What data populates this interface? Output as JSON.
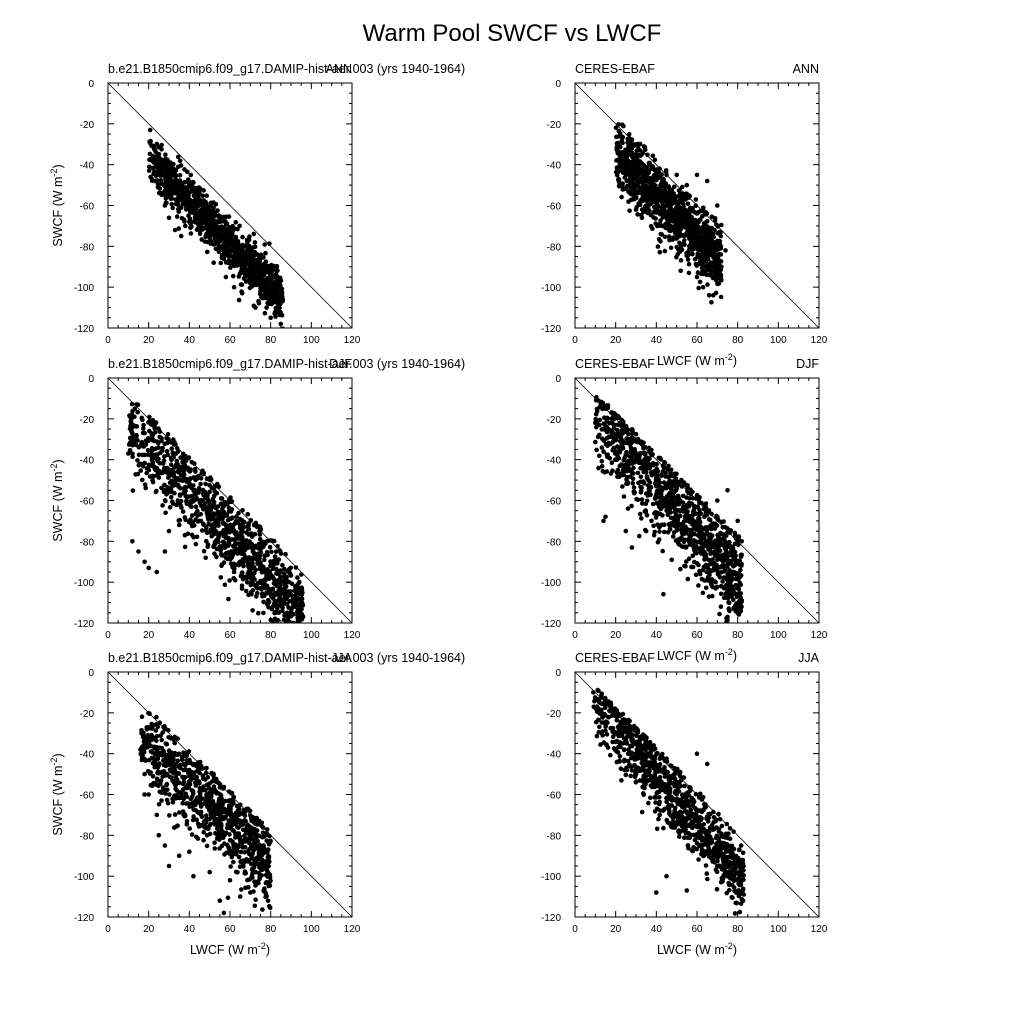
{
  "figure": {
    "title": "Warm Pool SWCF vs LWCF"
  },
  "chart_data": [
    {
      "type": "scatter",
      "title_left": "b.e21.B1850cmip6.f09_g17.DAMIP-hist-aer.003 (yrs 1940-1964)",
      "title_right": "ANN",
      "xlabel": "",
      "ylabel": "SWCF (W m-2)",
      "xlim": [
        0,
        120
      ],
      "ylim": [
        -120,
        0
      ],
      "xticks": [
        "0",
        "20",
        "40",
        "60",
        "80",
        "100",
        "120"
      ],
      "yticks": [
        "0",
        "-20",
        "-40",
        "-60",
        "-80",
        "-100",
        "-120"
      ],
      "reference_line": "1:1 (SWCF = -LWCF)",
      "cloud": {
        "n": 1100,
        "x_range": [
          20,
          86
        ],
        "slope": -1.05,
        "intercept": -16,
        "spread": 6,
        "upper_edge_offset": 2,
        "seed": 11
      },
      "outliers": [
        [
          28,
          -60
        ],
        [
          30,
          -66
        ],
        [
          33,
          -72
        ],
        [
          36,
          -75
        ],
        [
          38,
          -70
        ],
        [
          40,
          -68
        ],
        [
          45,
          -65
        ],
        [
          52,
          -88
        ],
        [
          58,
          -95
        ],
        [
          62,
          -100
        ],
        [
          66,
          -103
        ],
        [
          70,
          -98
        ],
        [
          75,
          -102
        ],
        [
          78,
          -110
        ],
        [
          80,
          -115
        ],
        [
          82,
          -113
        ],
        [
          85,
          -118
        ]
      ]
    },
    {
      "type": "scatter",
      "title_left": "CERES-EBAF",
      "title_right": "ANN",
      "xlabel": "LWCF (W m-2)",
      "ylabel": "",
      "xlim": [
        0,
        120
      ],
      "ylim": [
        -120,
        0
      ],
      "xticks": [
        "0",
        "20",
        "40",
        "60",
        "80",
        "100",
        "120"
      ],
      "yticks": [
        "0",
        "-20",
        "-40",
        "-60",
        "-80",
        "-100",
        "-120"
      ],
      "reference_line": "1:1 (SWCF = -LWCF)",
      "cloud": {
        "n": 1100,
        "x_range": [
          20,
          72
        ],
        "slope": -1.05,
        "intercept": -13,
        "spread": 8,
        "upper_edge_offset": 3,
        "seed": 23
      },
      "outliers": [
        [
          31,
          -31
        ],
        [
          32,
          -33
        ],
        [
          30,
          -62
        ],
        [
          35,
          -60
        ],
        [
          45,
          -45
        ],
        [
          50,
          -45
        ],
        [
          55,
          -50
        ],
        [
          60,
          -45
        ],
        [
          65,
          -48
        ],
        [
          52,
          -92
        ],
        [
          56,
          -93
        ],
        [
          60,
          -95
        ],
        [
          63,
          -100
        ],
        [
          66,
          -104
        ],
        [
          68,
          -104
        ],
        [
          74,
          -82
        ],
        [
          70,
          -60
        ]
      ]
    },
    {
      "type": "scatter",
      "title_left": "b.e21.B1850cmip6.f09_g17.DAMIP-hist-aer.003 (yrs 1940-1964)",
      "title_right": "DJF",
      "xlabel": "",
      "ylabel": "SWCF (W m-2)",
      "xlim": [
        0,
        120
      ],
      "ylim": [
        -120,
        0
      ],
      "xticks": [
        "0",
        "20",
        "40",
        "60",
        "80",
        "100",
        "120"
      ],
      "yticks": [
        "0",
        "-20",
        "-40",
        "-60",
        "-80",
        "-100",
        "-120"
      ],
      "reference_line": "1:1 (SWCF = -LWCF)",
      "cloud": {
        "n": 1100,
        "x_range": [
          10,
          96
        ],
        "slope": -1.05,
        "intercept": -14,
        "spread": 10,
        "upper_edge_offset": 2,
        "seed": 37
      },
      "outliers": [
        [
          10,
          -37
        ],
        [
          12,
          -30
        ],
        [
          14,
          -28
        ],
        [
          18,
          -27
        ],
        [
          22,
          -28
        ],
        [
          12,
          -80
        ],
        [
          15,
          -85
        ],
        [
          18,
          -90
        ],
        [
          20,
          -93
        ],
        [
          24,
          -95
        ],
        [
          28,
          -85
        ],
        [
          30,
          -75
        ],
        [
          35,
          -72
        ],
        [
          62,
          -95
        ],
        [
          70,
          -98
        ],
        [
          78,
          -105
        ],
        [
          85,
          -110
        ],
        [
          90,
          -115
        ],
        [
          95,
          -118
        ]
      ]
    },
    {
      "type": "scatter",
      "title_left": "CERES-EBAF",
      "title_right": "DJF",
      "xlabel": "LWCF (W m-2)",
      "ylabel": "",
      "xlim": [
        0,
        120
      ],
      "ylim": [
        -120,
        0
      ],
      "xticks": [
        "0",
        "20",
        "40",
        "60",
        "80",
        "100",
        "120"
      ],
      "yticks": [
        "0",
        "-20",
        "-40",
        "-60",
        "-80",
        "-100",
        "-120"
      ],
      "reference_line": "1:1 (SWCF = -LWCF)",
      "cloud": {
        "n": 1100,
        "x_range": [
          10,
          82
        ],
        "slope": -1.1,
        "intercept": -10,
        "spread": 11,
        "upper_edge_offset": 3,
        "seed": 51
      },
      "outliers": [
        [
          10,
          -22
        ],
        [
          12,
          -23
        ],
        [
          14,
          -70
        ],
        [
          15,
          -68
        ],
        [
          25,
          -75
        ],
        [
          28,
          -83
        ],
        [
          35,
          -75
        ],
        [
          70,
          -60
        ],
        [
          75,
          -55
        ],
        [
          80,
          -70
        ],
        [
          82,
          -80
        ],
        [
          78,
          -113
        ],
        [
          80,
          -115
        ],
        [
          75,
          -117
        ]
      ]
    },
    {
      "type": "scatter",
      "title_left": "b.e21.B1850cmip6.f09_g17.DAMIP-hist-aer.003 (yrs 1940-1964)",
      "title_right": "JJA",
      "xlabel": "LWCF (W m-2)",
      "ylabel": "SWCF (W m-2)",
      "xlim": [
        0,
        120
      ],
      "ylim": [
        -120,
        0
      ],
      "xticks": [
        "0",
        "20",
        "40",
        "60",
        "80",
        "100",
        "120"
      ],
      "yticks": [
        "0",
        "-20",
        "-40",
        "-60",
        "-80",
        "-100",
        "-120"
      ],
      "reference_line": "1:1 (SWCF = -LWCF)",
      "cloud": {
        "n": 900,
        "x_range": [
          16,
          80
        ],
        "slope": -0.95,
        "intercept": -18,
        "spread": 10,
        "upper_edge_offset": 2,
        "seed": 67
      },
      "outliers": [
        [
          16,
          -38
        ],
        [
          20,
          -35
        ],
        [
          22,
          -32
        ],
        [
          18,
          -50
        ],
        [
          20,
          -60
        ],
        [
          24,
          -70
        ],
        [
          25,
          -80
        ],
        [
          28,
          -85
        ],
        [
          30,
          -95
        ],
        [
          35,
          -90
        ],
        [
          40,
          -88
        ],
        [
          42,
          -100
        ],
        [
          50,
          -98
        ],
        [
          55,
          -112
        ],
        [
          57,
          -118
        ],
        [
          60,
          -102
        ],
        [
          65,
          -110
        ],
        [
          70,
          -108
        ],
        [
          75,
          -100
        ],
        [
          78,
          -103
        ]
      ]
    },
    {
      "type": "scatter",
      "title_left": "CERES-EBAF",
      "title_right": "JJA",
      "xlabel": "LWCF (W m-2)",
      "ylabel": "",
      "xlim": [
        0,
        120
      ],
      "ylim": [
        -120,
        0
      ],
      "xticks": [
        "0",
        "20",
        "40",
        "60",
        "80",
        "100",
        "120"
      ],
      "yticks": [
        "0",
        "-20",
        "-40",
        "-60",
        "-80",
        "-100",
        "-120"
      ],
      "reference_line": "1:1 (SWCF = -LWCF)",
      "cloud": {
        "n": 1000,
        "x_range": [
          9,
          83
        ],
        "slope": -1.2,
        "intercept": -3,
        "spread": 9,
        "upper_edge_offset": 3,
        "seed": 79
      },
      "outliers": [
        [
          9,
          -10
        ],
        [
          10,
          -13
        ],
        [
          12,
          -15
        ],
        [
          40,
          -108
        ],
        [
          45,
          -100
        ],
        [
          55,
          -107
        ],
        [
          60,
          -40
        ],
        [
          65,
          -45
        ],
        [
          70,
          -95
        ],
        [
          75,
          -100
        ],
        [
          80,
          -102
        ],
        [
          83,
          -109
        ]
      ]
    }
  ]
}
